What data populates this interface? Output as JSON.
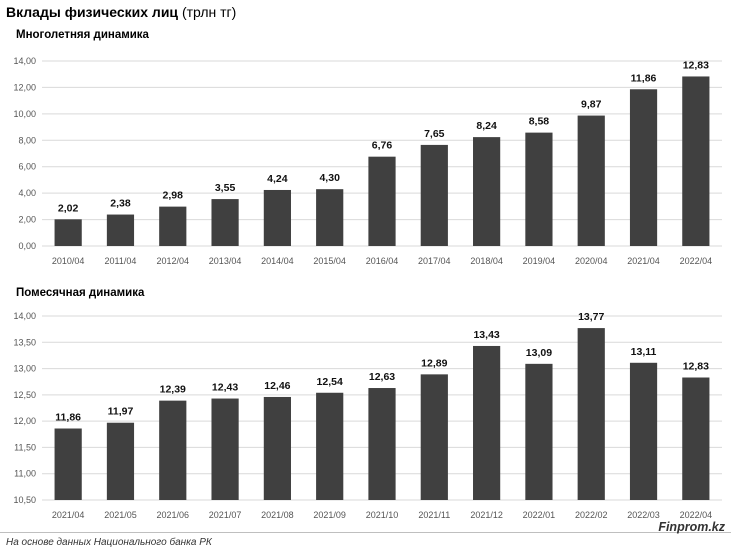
{
  "header": {
    "title_bold": "Вклады физических лиц",
    "title_unit": "(трлн тг)"
  },
  "source": "На основе данных Национального банка РК",
  "brand": "Finprom.kz",
  "colors": {
    "bar": "#404040",
    "grid": "#d9d9d9"
  },
  "chart_data": [
    {
      "type": "bar",
      "title": "Многолетняя динамика",
      "categories": [
        "2010/04",
        "2011/04",
        "2012/04",
        "2013/04",
        "2014/04",
        "2015/04",
        "2016/04",
        "2017/04",
        "2018/04",
        "2019/04",
        "2020/04",
        "2021/04",
        "2022/04"
      ],
      "values": [
        2.02,
        2.38,
        2.98,
        3.55,
        4.24,
        4.3,
        6.76,
        7.65,
        8.24,
        8.58,
        9.87,
        11.86,
        12.83
      ],
      "value_labels": [
        "2,02",
        "2,38",
        "2,98",
        "3,55",
        "4,24",
        "4,30",
        "6,76",
        "7,65",
        "8,24",
        "8,58",
        "9,87",
        "11,86",
        "12,83"
      ],
      "yticks": [
        "0,00",
        "2,00",
        "4,00",
        "6,00",
        "8,00",
        "10,00",
        "12,00",
        "14,00"
      ],
      "ylim": [
        0,
        14
      ],
      "grid": true
    },
    {
      "type": "bar",
      "title": "Помесячная динамика",
      "categories": [
        "2021/04",
        "2021/05",
        "2021/06",
        "2021/07",
        "2021/08",
        "2021/09",
        "2021/10",
        "2021/11",
        "2021/12",
        "2022/01",
        "2022/02",
        "2022/03",
        "2022/04"
      ],
      "values": [
        11.86,
        11.97,
        12.39,
        12.43,
        12.46,
        12.54,
        12.63,
        12.89,
        13.43,
        13.09,
        13.77,
        13.11,
        12.83
      ],
      "value_labels": [
        "11,86",
        "11,97",
        "12,39",
        "12,43",
        "12,46",
        "12,54",
        "12,63",
        "12,89",
        "13,43",
        "13,09",
        "13,77",
        "13,11",
        "12,83"
      ],
      "yticks": [
        "10,50",
        "11,00",
        "11,50",
        "12,00",
        "12,50",
        "13,00",
        "13,50",
        "14,00"
      ],
      "ylim": [
        10.5,
        14
      ],
      "grid": true
    }
  ]
}
